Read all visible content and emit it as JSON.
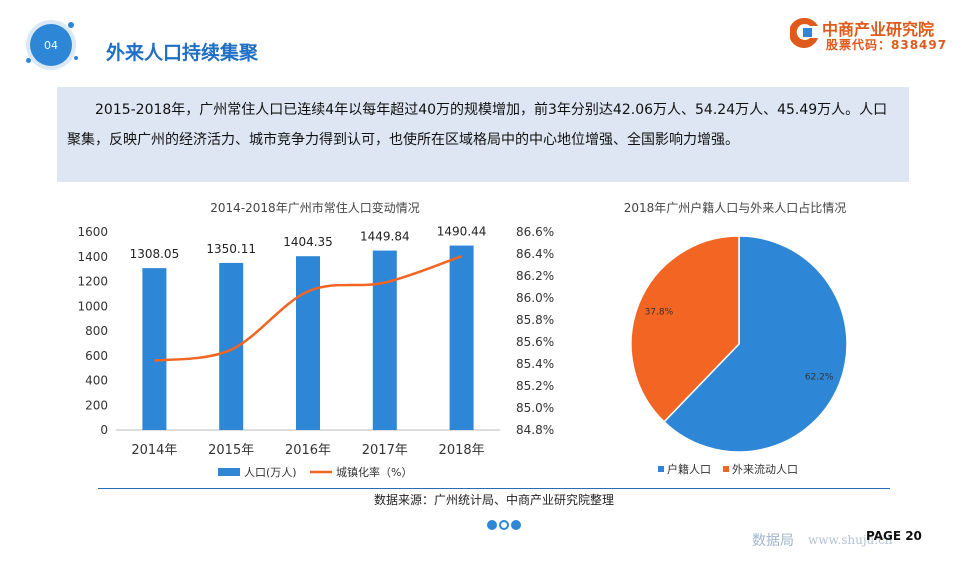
{
  "header": {
    "badge": "04",
    "title": "外来人口持续集聚",
    "logo_name": "中商产业研究院",
    "logo_code": "股票代码：838497"
  },
  "summary": "2015-2018年，广州常住人口已连续4年以每年超过40万的规模增加，前3年分别达42.06万人、54.24万人、45.49万人。人口聚集，反映广州的经济活力、城市竞争力得到认可，也使所在区域格局中的中心地位增强、全国影响力增强。",
  "colors": {
    "accent": "#1f6fc4",
    "bar": "#2e86d6",
    "line": "#f26522",
    "pie_blue": "#2e86d6",
    "pie_orange": "#f26522"
  },
  "chart_data": [
    {
      "type": "bar",
      "title": "2014-2018年广州市常住人口变动情况",
      "categories": [
        "2014年",
        "2015年",
        "2016年",
        "2017年",
        "2018年"
      ],
      "series": [
        {
          "name": "人口(万人)",
          "type": "bar",
          "values": [
            1308.05,
            1350.11,
            1404.35,
            1449.84,
            1490.44
          ]
        },
        {
          "name": "城镇化率（%）",
          "type": "line",
          "axis": "right",
          "values": [
            85.43,
            85.53,
            86.06,
            86.14,
            86.38
          ]
        }
      ],
      "data_labels": [
        "1308.05",
        "1350.11",
        "1404.35",
        "1449.84",
        "1490.44"
      ],
      "ylim": [
        0,
        1600
      ],
      "yticks": [
        "0",
        "200",
        "400",
        "600",
        "800",
        "1000",
        "1200",
        "1400",
        "1600"
      ],
      "y2lim": [
        84.8,
        86.6
      ],
      "y2ticks": [
        "84.8%",
        "85.0%",
        "85.2%",
        "85.4%",
        "85.6%",
        "85.8%",
        "86.0%",
        "86.2%",
        "86.4%",
        "86.6%"
      ],
      "legend": "bottom"
    },
    {
      "type": "pie",
      "title": "2018年广州户籍人口与外来人口占比情况",
      "slices": [
        {
          "name": "户籍人口",
          "value": 62.2,
          "label": "62.2%"
        },
        {
          "name": "外来流动人口",
          "value": 37.8,
          "label": "37.8%"
        }
      ],
      "legend": "bottom"
    }
  ],
  "footer": {
    "source": "数据来源：广州统计局、中商产业研究院整理",
    "page": "PAGE 20",
    "watermark": "数据局",
    "watermark_url": "www.shuju.cn"
  }
}
